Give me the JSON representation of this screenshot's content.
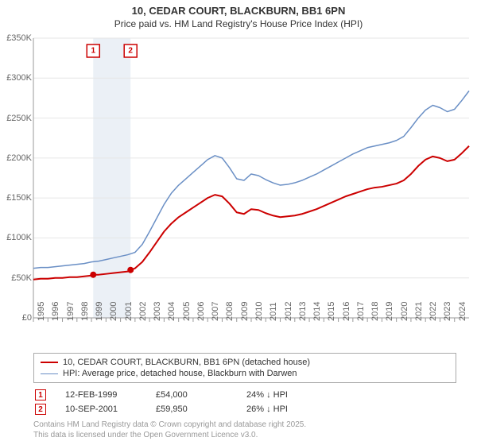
{
  "title_line1": "10, CEDAR COURT, BLACKBURN, BB1 6PN",
  "title_line2": "Price paid vs. HM Land Registry's House Price Index (HPI)",
  "chart": {
    "type": "line",
    "background_color": "#ffffff",
    "grid_color": "#e6e6e6",
    "axis_color": "#999999",
    "y_axis": {
      "min": 0,
      "max": 350000,
      "tick_step": 50000,
      "labels": [
        "£0",
        "£50K",
        "£100K",
        "£150K",
        "£200K",
        "£250K",
        "£300K",
        "£350K"
      ]
    },
    "x_axis": {
      "min": 1995,
      "max": 2025,
      "tick_step": 1,
      "labels": [
        "1995",
        "1996",
        "1997",
        "1998",
        "1999",
        "2000",
        "2001",
        "2002",
        "2003",
        "2004",
        "2005",
        "2006",
        "2007",
        "2008",
        "2009",
        "2010",
        "2011",
        "2012",
        "2013",
        "2014",
        "2015",
        "2016",
        "2017",
        "2018",
        "2019",
        "2020",
        "2021",
        "2022",
        "2023",
        "2024"
      ]
    },
    "shaded_range": {
      "x_start": 1999.12,
      "x_end": 2001.69,
      "fill": "#e8edf5"
    },
    "series": [
      {
        "id": "price_paid",
        "label": "10, CEDAR COURT, BLACKBURN, BB1 6PN (detached house)",
        "color": "#cc0000",
        "line_width": 2,
        "data": [
          [
            1995,
            48000
          ],
          [
            1995.5,
            49000
          ],
          [
            1996,
            49000
          ],
          [
            1996.5,
            50000
          ],
          [
            1997,
            50000
          ],
          [
            1997.5,
            51000
          ],
          [
            1998,
            51000
          ],
          [
            1998.5,
            52000
          ],
          [
            1999,
            53000
          ],
          [
            1999.12,
            54000
          ],
          [
            1999.5,
            54000
          ],
          [
            2000,
            55000
          ],
          [
            2000.5,
            56000
          ],
          [
            2001,
            57000
          ],
          [
            2001.5,
            58000
          ],
          [
            2001.69,
            59950
          ],
          [
            2002,
            62000
          ],
          [
            2002.5,
            70000
          ],
          [
            2003,
            82000
          ],
          [
            2003.5,
            95000
          ],
          [
            2004,
            108000
          ],
          [
            2004.5,
            118000
          ],
          [
            2005,
            126000
          ],
          [
            2005.5,
            132000
          ],
          [
            2006,
            138000
          ],
          [
            2006.5,
            144000
          ],
          [
            2007,
            150000
          ],
          [
            2007.5,
            154000
          ],
          [
            2008,
            152000
          ],
          [
            2008.5,
            143000
          ],
          [
            2009,
            132000
          ],
          [
            2009.5,
            130000
          ],
          [
            2010,
            136000
          ],
          [
            2010.5,
            135000
          ],
          [
            2011,
            131000
          ],
          [
            2011.5,
            128000
          ],
          [
            2012,
            126000
          ],
          [
            2012.5,
            127000
          ],
          [
            2013,
            128000
          ],
          [
            2013.5,
            130000
          ],
          [
            2014,
            133000
          ],
          [
            2014.5,
            136000
          ],
          [
            2015,
            140000
          ],
          [
            2015.5,
            144000
          ],
          [
            2016,
            148000
          ],
          [
            2016.5,
            152000
          ],
          [
            2017,
            155000
          ],
          [
            2017.5,
            158000
          ],
          [
            2018,
            161000
          ],
          [
            2018.5,
            163000
          ],
          [
            2019,
            164000
          ],
          [
            2019.5,
            166000
          ],
          [
            2020,
            168000
          ],
          [
            2020.5,
            172000
          ],
          [
            2021,
            180000
          ],
          [
            2021.5,
            190000
          ],
          [
            2022,
            198000
          ],
          [
            2022.5,
            202000
          ],
          [
            2023,
            200000
          ],
          [
            2023.5,
            196000
          ],
          [
            2024,
            198000
          ],
          [
            2024.5,
            206000
          ],
          [
            2025,
            215000
          ]
        ]
      },
      {
        "id": "hpi",
        "label": "HPI: Average price, detached house, Blackburn with Darwen",
        "color": "#6a8fc5",
        "line_width": 1.5,
        "data": [
          [
            1995,
            62000
          ],
          [
            1995.5,
            63000
          ],
          [
            1996,
            63000
          ],
          [
            1996.5,
            64000
          ],
          [
            1997,
            65000
          ],
          [
            1997.5,
            66000
          ],
          [
            1998,
            67000
          ],
          [
            1998.5,
            68000
          ],
          [
            1999,
            70000
          ],
          [
            1999.5,
            71000
          ],
          [
            2000,
            73000
          ],
          [
            2000.5,
            75000
          ],
          [
            2001,
            77000
          ],
          [
            2001.5,
            79000
          ],
          [
            2002,
            82000
          ],
          [
            2002.5,
            92000
          ],
          [
            2003,
            108000
          ],
          [
            2003.5,
            125000
          ],
          [
            2004,
            142000
          ],
          [
            2004.5,
            156000
          ],
          [
            2005,
            166000
          ],
          [
            2005.5,
            174000
          ],
          [
            2006,
            182000
          ],
          [
            2006.5,
            190000
          ],
          [
            2007,
            198000
          ],
          [
            2007.5,
            203000
          ],
          [
            2008,
            200000
          ],
          [
            2008.5,
            188000
          ],
          [
            2009,
            174000
          ],
          [
            2009.5,
            172000
          ],
          [
            2010,
            180000
          ],
          [
            2010.5,
            178000
          ],
          [
            2011,
            173000
          ],
          [
            2011.5,
            169000
          ],
          [
            2012,
            166000
          ],
          [
            2012.5,
            167000
          ],
          [
            2013,
            169000
          ],
          [
            2013.5,
            172000
          ],
          [
            2014,
            176000
          ],
          [
            2014.5,
            180000
          ],
          [
            2015,
            185000
          ],
          [
            2015.5,
            190000
          ],
          [
            2016,
            195000
          ],
          [
            2016.5,
            200000
          ],
          [
            2017,
            205000
          ],
          [
            2017.5,
            209000
          ],
          [
            2018,
            213000
          ],
          [
            2018.5,
            215000
          ],
          [
            2019,
            217000
          ],
          [
            2019.5,
            219000
          ],
          [
            2020,
            222000
          ],
          [
            2020.5,
            227000
          ],
          [
            2021,
            238000
          ],
          [
            2021.5,
            250000
          ],
          [
            2022,
            260000
          ],
          [
            2022.5,
            266000
          ],
          [
            2023,
            263000
          ],
          [
            2023.5,
            258000
          ],
          [
            2024,
            261000
          ],
          [
            2024.5,
            272000
          ],
          [
            2025,
            284000
          ]
        ]
      }
    ],
    "sale_markers": [
      {
        "n": "1",
        "x": 1999.12,
        "y": 54000,
        "color": "#cc0000"
      },
      {
        "n": "2",
        "x": 2001.69,
        "y": 59950,
        "color": "#cc0000"
      }
    ]
  },
  "legend": {
    "rows": [
      {
        "color": "#cc0000",
        "width": 2,
        "label": "10, CEDAR COURT, BLACKBURN, BB1 6PN (detached house)"
      },
      {
        "color": "#6a8fc5",
        "width": 1.5,
        "label": "HPI: Average price, detached house, Blackburn with Darwen"
      }
    ]
  },
  "sales_table": {
    "rows": [
      {
        "n": "1",
        "date": "12-FEB-1999",
        "price": "£54,000",
        "delta": "24% ↓ HPI"
      },
      {
        "n": "2",
        "date": "10-SEP-2001",
        "price": "£59,950",
        "delta": "26% ↓ HPI"
      }
    ]
  },
  "attribution_line1": "Contains HM Land Registry data © Crown copyright and database right 2025.",
  "attribution_line2": "This data is licensed under the Open Government Licence v3.0."
}
